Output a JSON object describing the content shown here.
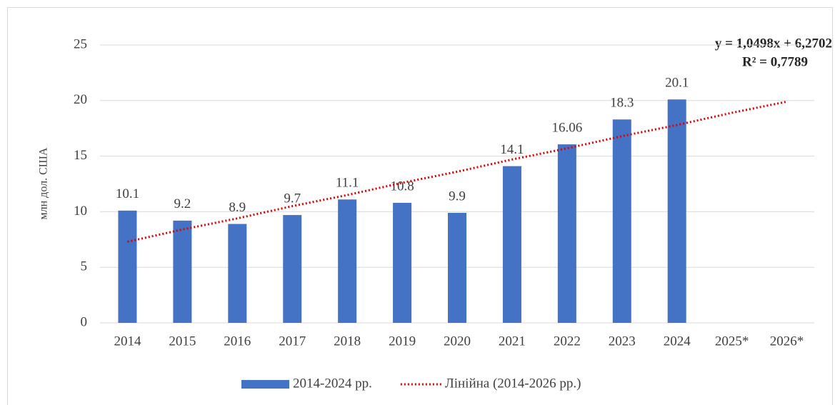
{
  "chart_data": {
    "type": "bar",
    "ylabel": "млн дол. США",
    "categories": [
      "2014",
      "2015",
      "2016",
      "2017",
      "2018",
      "2019",
      "2020",
      "2021",
      "2022",
      "2023",
      "2024",
      "2025*",
      "2026*"
    ],
    "series": [
      {
        "name": "2014-2024 рр.",
        "type": "bar",
        "color": "#4472c4",
        "values": [
          10.1,
          9.2,
          8.9,
          9.7,
          11.1,
          10.8,
          9.9,
          14.1,
          16.06,
          18.3,
          20.1,
          null,
          null
        ]
      },
      {
        "name": "Лінійна (2014-2026 рр.)",
        "type": "line",
        "line_style": "dotted",
        "color": "#e00000",
        "values": [
          7.3,
          8.4,
          9.4,
          10.5,
          11.5,
          12.6,
          13.6,
          14.7,
          15.7,
          16.8,
          17.8,
          18.9,
          19.9
        ]
      }
    ],
    "annotations": [
      "y = 1,0498x + 6,2702",
      "R² = 0,7789"
    ],
    "ylim": [
      0,
      25
    ],
    "yticks": [
      0,
      5,
      10,
      15,
      20,
      25
    ],
    "grid": true,
    "legend": "bottom"
  }
}
